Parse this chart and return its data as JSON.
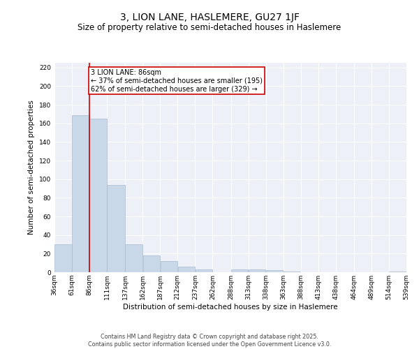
{
  "title": "3, LION LANE, HASLEMERE, GU27 1JF",
  "subtitle": "Size of property relative to semi-detached houses in Haslemere",
  "xlabel": "Distribution of semi-detached houses by size in Haslemere",
  "ylabel": "Number of semi-detached properties",
  "bar_color": "#c8d8e8",
  "bar_edge_color": "#aabbd0",
  "highlight_line_color": "#cc0000",
  "annotation_line1": "3 LION LANE: 86sqm",
  "annotation_line2": "← 37% of semi-detached houses are smaller (195)",
  "annotation_line3": "62% of semi-detached houses are larger (329) →",
  "annotation_box_color": "#ffffff",
  "annotation_box_edge_color": "#cc0000",
  "property_size": 86,
  "bin_edges": [
    36,
    61,
    86,
    111,
    137,
    162,
    187,
    212,
    237,
    262,
    288,
    313,
    338,
    363,
    388,
    413,
    438,
    464,
    489,
    514,
    539
  ],
  "counts": [
    30,
    169,
    165,
    94,
    30,
    18,
    12,
    6,
    3,
    0,
    3,
    3,
    2,
    1,
    0,
    0,
    0,
    0,
    0,
    1
  ],
  "tick_labels": [
    "36sqm",
    "61sqm",
    "86sqm",
    "111sqm",
    "137sqm",
    "162sqm",
    "187sqm",
    "212sqm",
    "237sqm",
    "262sqm",
    "288sqm",
    "313sqm",
    "338sqm",
    "363sqm",
    "388sqm",
    "413sqm",
    "438sqm",
    "464sqm",
    "489sqm",
    "514sqm",
    "539sqm"
  ],
  "ylim": [
    0,
    225
  ],
  "yticks": [
    0,
    20,
    40,
    60,
    80,
    100,
    120,
    140,
    160,
    180,
    200,
    220
  ],
  "background_color": "#edf1f7",
  "footer_text": "Contains HM Land Registry data © Crown copyright and database right 2025.\nContains public sector information licensed under the Open Government Licence v3.0.",
  "title_fontsize": 10,
  "subtitle_fontsize": 8.5,
  "axis_label_fontsize": 7.5,
  "tick_fontsize": 6.5,
  "footer_fontsize": 5.8,
  "annotation_fontsize": 7
}
